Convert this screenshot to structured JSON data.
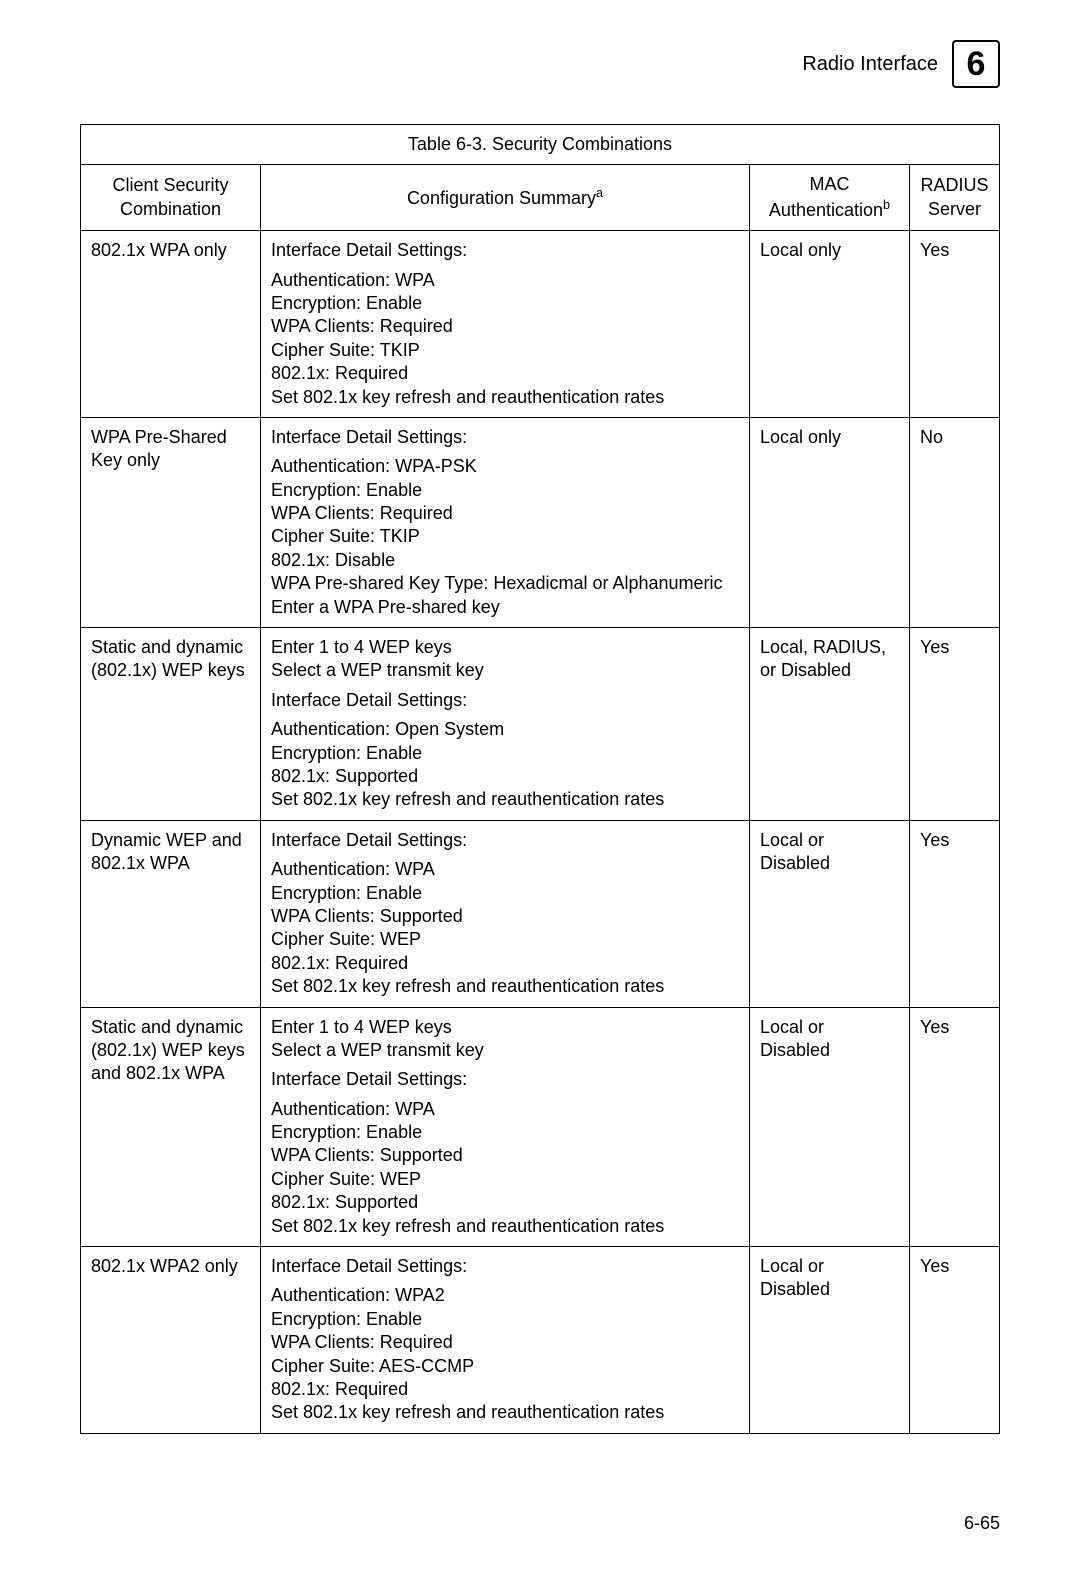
{
  "header": {
    "section_title": "Radio Interface",
    "chapter_number": "6"
  },
  "table": {
    "title": "Table 6-3. Security Combinations",
    "columns": {
      "client": "Client Security Combination",
      "config": "Configuration Summary",
      "config_sup": "a",
      "mac": "MAC Authentication",
      "mac_sup": "b",
      "radius": "RADIUS Server"
    },
    "rows": [
      {
        "client": "802.1x WPA only",
        "config_blocks": [
          [
            "Interface Detail Settings:"
          ],
          [
            "Authentication: WPA",
            "Encryption: Enable",
            "WPA Clients: Required",
            "Cipher Suite: TKIP",
            "802.1x: Required",
            "Set 802.1x key refresh and reauthentication rates"
          ]
        ],
        "mac": "Local only",
        "radius": "Yes"
      },
      {
        "client": "WPA Pre-Shared Key only",
        "config_blocks": [
          [
            "Interface Detail Settings:"
          ],
          [
            "Authentication: WPA-PSK",
            "Encryption: Enable",
            "WPA Clients: Required",
            "Cipher Suite: TKIP",
            "802.1x: Disable",
            "WPA Pre-shared Key Type: Hexadicmal or Alphanumeric",
            "Enter a WPA Pre-shared key"
          ]
        ],
        "mac": "Local only",
        "radius": "No"
      },
      {
        "client": "Static and dynamic (802.1x) WEP keys",
        "config_blocks": [
          [
            "Enter 1 to 4 WEP keys",
            "Select a WEP transmit key"
          ],
          [
            "Interface Detail Settings:"
          ],
          [
            "Authentication: Open System",
            "Encryption: Enable",
            "802.1x: Supported",
            "Set 802.1x key refresh and reauthentication rates"
          ]
        ],
        "mac": "Local, RADIUS, or Disabled",
        "radius": "Yes"
      },
      {
        "client": "Dynamic WEP and 802.1x WPA",
        "config_blocks": [
          [
            "Interface Detail Settings:"
          ],
          [
            "Authentication: WPA",
            "Encryption: Enable",
            "WPA Clients: Supported",
            "Cipher Suite: WEP",
            "802.1x: Required",
            "Set 802.1x key refresh and reauthentication rates"
          ]
        ],
        "mac": "Local or Disabled",
        "radius": "Yes"
      },
      {
        "client": "Static and dynamic (802.1x) WEP keys and 802.1x WPA",
        "config_blocks": [
          [
            "Enter 1 to 4 WEP keys",
            "Select a WEP transmit key"
          ],
          [
            "Interface Detail Settings:"
          ],
          [
            "Authentication: WPA",
            "Encryption: Enable",
            "WPA Clients: Supported",
            "Cipher Suite: WEP",
            "802.1x: Supported",
            "Set 802.1x key refresh and reauthentication rates"
          ]
        ],
        "mac": "Local or Disabled",
        "radius": "Yes"
      },
      {
        "client": "802.1x WPA2 only",
        "config_blocks": [
          [
            "Interface Detail Settings:"
          ],
          [
            "Authentication: WPA2",
            "Encryption: Enable",
            "WPA Clients: Required",
            "Cipher Suite: AES-CCMP",
            "802.1x: Required",
            "Set 802.1x key refresh and reauthentication rates"
          ]
        ],
        "mac": "Local or Disabled",
        "radius": "Yes"
      }
    ]
  },
  "page_number": "6-65"
}
